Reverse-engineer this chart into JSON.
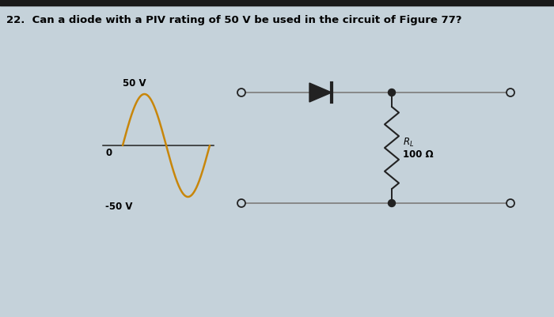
{
  "title_text": "22.  Can a diode with a PIV rating of 50 V be used in the circuit of Figure 77?",
  "bg_color": "#c5d2da",
  "topbar_color": "#1a1a1a",
  "sine_color": "#c8860a",
  "circuit_color": "#222222",
  "wire_color": "#888888",
  "label_50v": "50 V",
  "label_0": "0",
  "label_neg50v": "-50 V",
  "label_RL": "$R_L$",
  "label_100ohm": "100 Ω"
}
